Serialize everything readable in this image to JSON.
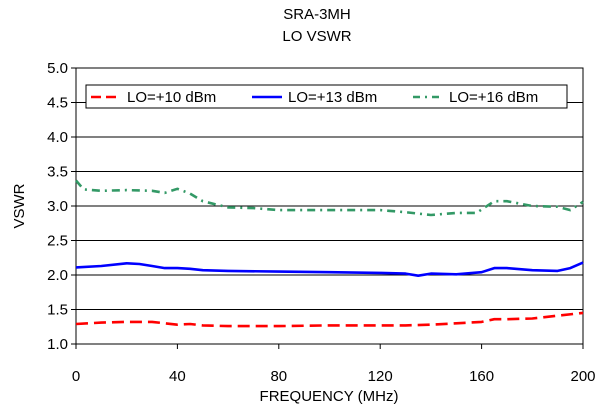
{
  "chart_data": {
    "type": "line",
    "title": "SRA-3MH",
    "subtitle": "LO VSWR",
    "xlabel": "FREQUENCY (MHz)",
    "ylabel": "VSWR",
    "xlim": [
      0,
      200
    ],
    "ylim": [
      1.0,
      5.0
    ],
    "x_ticks": [
      "0",
      "40",
      "80",
      "120",
      "160",
      "200"
    ],
    "y_ticks": [
      "1.0",
      "1.5",
      "2.0",
      "2.5",
      "3.0",
      "3.5",
      "4.0",
      "4.5",
      "5.0"
    ],
    "grid": true,
    "legend_position": "top",
    "series": [
      {
        "name": "LO=+10 dBm",
        "color": "#ff0000",
        "dash": "dash",
        "x": [
          0,
          10,
          20,
          30,
          35,
          40,
          45,
          50,
          60,
          80,
          100,
          120,
          130,
          140,
          150,
          160,
          165,
          170,
          180,
          190,
          200
        ],
        "y": [
          1.29,
          1.31,
          1.32,
          1.32,
          1.3,
          1.28,
          1.29,
          1.27,
          1.26,
          1.26,
          1.27,
          1.27,
          1.27,
          1.28,
          1.3,
          1.32,
          1.36,
          1.36,
          1.37,
          1.41,
          1.45
        ]
      },
      {
        "name": "LO=+13 dBm",
        "color": "#0000ff",
        "dash": "solid",
        "x": [
          0,
          10,
          20,
          25,
          30,
          35,
          40,
          45,
          50,
          60,
          80,
          100,
          120,
          130,
          135,
          140,
          150,
          160,
          165,
          170,
          180,
          190,
          195,
          200
        ],
        "y": [
          2.11,
          2.13,
          2.17,
          2.16,
          2.13,
          2.1,
          2.1,
          2.09,
          2.07,
          2.06,
          2.05,
          2.04,
          2.03,
          2.02,
          1.99,
          2.02,
          2.01,
          2.04,
          2.1,
          2.1,
          2.07,
          2.06,
          2.1,
          2.18
        ]
      },
      {
        "name": "LO=+16 dBm",
        "color": "#339966",
        "dash": "dashdot",
        "x": [
          0,
          3,
          10,
          20,
          30,
          35,
          40,
          45,
          50,
          60,
          70,
          80,
          100,
          120,
          130,
          140,
          150,
          158,
          165,
          170,
          180,
          190,
          195,
          200
        ],
        "y": [
          3.37,
          3.24,
          3.22,
          3.23,
          3.22,
          3.19,
          3.25,
          3.18,
          3.07,
          2.98,
          2.97,
          2.94,
          2.94,
          2.94,
          2.91,
          2.87,
          2.9,
          2.9,
          3.07,
          3.07,
          3.0,
          2.99,
          2.94,
          3.06
        ]
      }
    ]
  }
}
